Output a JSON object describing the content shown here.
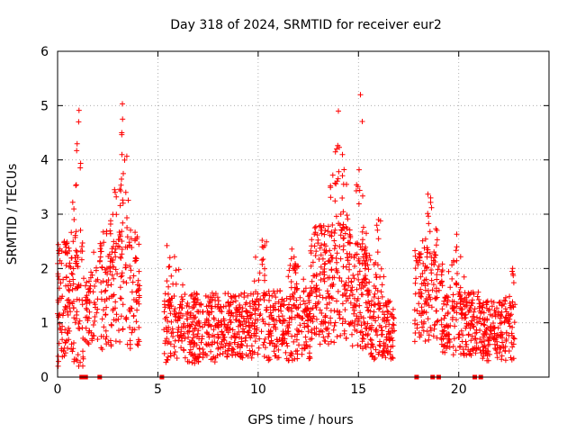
{
  "chart_data": {
    "type": "scatter",
    "title": "Day 318 of 2024, SRMTID for receiver eur2",
    "xlabel": "GPS time / hours",
    "ylabel": "SRMTID / TECUs",
    "xlim": [
      0,
      24.5
    ],
    "ylim": [
      0,
      6
    ],
    "xticks": [
      0,
      5,
      10,
      15,
      20
    ],
    "yticks": [
      0,
      1,
      2,
      3,
      4,
      5,
      6
    ],
    "grid": true,
    "marker": "+",
    "color": "#ff0000",
    "zero_value_times": [
      1.2,
      1.4,
      2.1,
      5.2,
      17.9,
      18.7,
      19.0,
      20.8,
      21.1
    ],
    "clusters": [
      {
        "t0": 0.0,
        "t1": 1.3,
        "n": 170,
        "base": 1.3,
        "amp": 1.2,
        "peak_t": 1.05,
        "peak_v": 4.7
      },
      {
        "t0": 1.35,
        "t1": 2.0,
        "n": 55,
        "base": 1.2,
        "amp": 0.6,
        "peak_t": 1.8,
        "peak_v": 2.3
      },
      {
        "t0": 2.1,
        "t1": 4.1,
        "n": 210,
        "base": 1.6,
        "amp": 1.1,
        "peak_t": 3.2,
        "peak_v": 4.5
      },
      {
        "t0": 5.3,
        "t1": 8.0,
        "n": 280,
        "base": 0.9,
        "amp": 0.65,
        "peak_t": 5.6,
        "peak_v": 2.2
      },
      {
        "t0": 8.0,
        "t1": 10.5,
        "n": 260,
        "base": 0.95,
        "amp": 0.6,
        "peak_t": 10.2,
        "peak_v": 2.4
      },
      {
        "t0": 10.5,
        "t1": 12.6,
        "n": 230,
        "base": 0.95,
        "amp": 0.65,
        "peak_t": 11.8,
        "peak_v": 2.0
      },
      {
        "t0": 12.6,
        "t1": 14.6,
        "n": 260,
        "base": 1.7,
        "amp": 1.1,
        "peak_t": 14.0,
        "peak_v": 4.9
      },
      {
        "t0": 14.6,
        "t1": 15.6,
        "n": 140,
        "base": 1.5,
        "amp": 1.0,
        "peak_t": 15.1,
        "peak_v": 5.2
      },
      {
        "t0": 15.6,
        "t1": 16.8,
        "n": 140,
        "base": 0.9,
        "amp": 0.6,
        "peak_t": 16.0,
        "peak_v": 2.9
      },
      {
        "t0": 17.8,
        "t1": 19.2,
        "n": 150,
        "base": 1.5,
        "amp": 0.9,
        "peak_t": 18.6,
        "peak_v": 3.3
      },
      {
        "t0": 19.2,
        "t1": 21.0,
        "n": 190,
        "base": 1.0,
        "amp": 0.6,
        "peak_t": 19.9,
        "peak_v": 2.4
      },
      {
        "t0": 21.0,
        "t1": 22.8,
        "n": 190,
        "base": 0.85,
        "amp": 0.55,
        "peak_t": 22.7,
        "peak_v": 1.9
      }
    ]
  }
}
